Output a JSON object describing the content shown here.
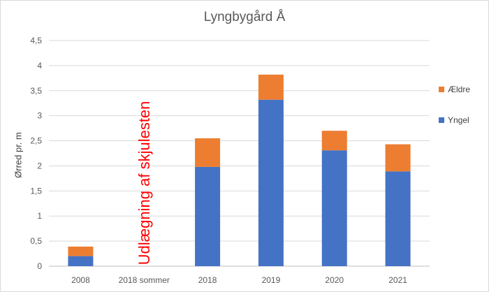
{
  "chart_data": {
    "type": "bar",
    "stacked": true,
    "title": "Lyngbygård Å",
    "xlabel": "",
    "ylabel": "Ørred pr. m",
    "categories": [
      "2008",
      "2018 sommer",
      "2018",
      "2019",
      "2020",
      "2021"
    ],
    "series": [
      {
        "name": "Yngel",
        "color": "#4472c4",
        "values": [
          0.2,
          0,
          1.98,
          3.32,
          2.31,
          1.89
        ]
      },
      {
        "name": "Ældre",
        "color": "#ed7d31",
        "values": [
          0.19,
          0,
          0.57,
          0.5,
          0.39,
          0.54
        ]
      }
    ],
    "ylim": [
      0,
      4.5
    ],
    "yticks": [
      "0",
      "0,5",
      "1",
      "1,5",
      "2",
      "2,5",
      "3",
      "3,5",
      "4",
      "4,5"
    ],
    "grid": true,
    "legend_position": "right",
    "annotation": "Udlægning af skjulesten"
  }
}
